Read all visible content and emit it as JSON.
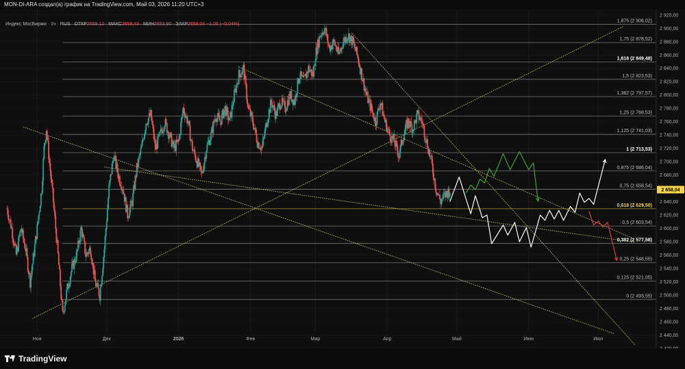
{
  "header": {
    "title": "MON-DI-ARA создал(а) график на TradingView.com, Май 03, 2026 11:20 UTC+3"
  },
  "legend": {
    "symbol": "Индекс МосБиржи · 1ч · RUS",
    "open_label": "ОТКР",
    "open": "2659,12",
    "high_label": "МАКС",
    "high": "2659,43",
    "low_label": "МИН",
    "low": "2653,90",
    "close_label": "ЗАКР",
    "close": "2658,04",
    "change": "−1,05 (−0,04%)"
  },
  "brand": {
    "name": "TradingView"
  },
  "colors": {
    "background": "#0f0f0f",
    "up": "#26a69a",
    "down": "#ef5350",
    "fib_line": "#bdbdbd",
    "trendline": "#c8c860",
    "price_badge": "#f5d64a",
    "projection_white": "#ffffff",
    "projection_green": "#3fa33f",
    "projection_red": "#e53935"
  },
  "chart_data": {
    "type": "candlestick",
    "ylim": [
      2420,
      2928
    ],
    "y_ticks": [
      "2 920,00",
      "2 900,00",
      "2 880,00",
      "2 860,00",
      "2 840,00",
      "2 820,00",
      "2 800,00",
      "2 780,00",
      "2 760,00",
      "2 740,00",
      "2 720,00",
      "2 700,00",
      "2 680,00",
      "2 660,00",
      "2 640,00",
      "2 620,00",
      "2 600,00",
      "2 580,00",
      "2 560,00",
      "2 540,00",
      "2 520,00",
      "2 500,00",
      "2 480,00",
      "2 460,00",
      "2 440,00",
      "2 420,00"
    ],
    "y_tick_values": [
      2920,
      2900,
      2880,
      2860,
      2840,
      2820,
      2800,
      2780,
      2760,
      2740,
      2720,
      2700,
      2680,
      2660,
      2640,
      2620,
      2600,
      2580,
      2560,
      2540,
      2520,
      2500,
      2480,
      2460,
      2440,
      2420
    ],
    "x_ticks": [
      {
        "label": "Ноя",
        "date": "2025-11-01"
      },
      {
        "label": "Дек",
        "date": "2025-12-01"
      },
      {
        "label": "2026",
        "date": "2026-01-01"
      },
      {
        "label": "Фев",
        "date": "2026-02-01"
      },
      {
        "label": "Мар",
        "date": "2026-03-01"
      },
      {
        "label": "Апр",
        "date": "2026-04-01"
      },
      {
        "label": "Май",
        "date": "2026-05-01"
      },
      {
        "label": "Июн",
        "date": "2026-06-01"
      },
      {
        "label": "Июл",
        "date": "2026-07-01"
      }
    ],
    "current_price": {
      "value": 2658.04,
      "label": "2 658,04"
    },
    "fib_levels": [
      {
        "ratio": "1,875",
        "value": 2906.02,
        "label": "1,875 (2 906,02)",
        "bold": false
      },
      {
        "ratio": "1,75",
        "value": 2878.52,
        "label": "1,75 (2 878,52)",
        "bold": false
      },
      {
        "ratio": "1,618",
        "value": 2849.48,
        "label": "1,618 (2 849,48)",
        "bold": true
      },
      {
        "ratio": "1,5",
        "value": 2823.53,
        "label": "1,5 (2 823,53)",
        "bold": false
      },
      {
        "ratio": "1,382",
        "value": 2797.57,
        "label": "1,382 (2 797,57)",
        "bold": false
      },
      {
        "ratio": "1,25",
        "value": 2768.53,
        "label": "1,25 (2 768,53)",
        "bold": false
      },
      {
        "ratio": "1,125",
        "value": 2741.03,
        "label": "1,125 (2 741,03)",
        "bold": false
      },
      {
        "ratio": "1",
        "value": 2713.53,
        "label": "1 (2 713,53)",
        "bold": true
      },
      {
        "ratio": "0,875",
        "value": 2686.04,
        "label": "0,875 (2 686,04)",
        "bold": false
      },
      {
        "ratio": "0,75",
        "value": 2658.54,
        "label": "0,75 (2 658,54)",
        "bold": false
      },
      {
        "ratio": "0,618",
        "value": 2629.5,
        "label": "0,618 (2 629,50)",
        "bold": true,
        "highlight": true
      },
      {
        "ratio": "0,5",
        "value": 2603.54,
        "label": "0,5 (2 603,54)",
        "bold": false
      },
      {
        "ratio": "0,382",
        "value": 2577.58,
        "label": "0,382 (2 577,58)",
        "bold": true
      },
      {
        "ratio": "0,25",
        "value": 2548.55,
        "label": "0,25 (2 548,55)",
        "bold": false
      },
      {
        "ratio": "0,125",
        "value": 2521.05,
        "label": "0,125 (2 521,05)",
        "bold": false
      },
      {
        "ratio": "0",
        "value": 2493.55,
        "label": "0 (2 493,55)",
        "bold": false
      }
    ],
    "price_path": [
      [
        "2025-10-19",
        2630
      ],
      [
        "2025-10-21",
        2600
      ],
      [
        "2025-10-23",
        2560
      ],
      [
        "2025-10-25",
        2600
      ],
      [
        "2025-10-27",
        2570
      ],
      [
        "2025-10-29",
        2520
      ],
      [
        "2025-11-01",
        2600
      ],
      [
        "2025-11-03",
        2660
      ],
      [
        "2025-11-04",
        2720
      ],
      [
        "2025-11-05",
        2750
      ],
      [
        "2025-11-06",
        2710
      ],
      [
        "2025-11-08",
        2640
      ],
      [
        "2025-11-10",
        2560
      ],
      [
        "2025-11-12",
        2470
      ],
      [
        "2025-11-14",
        2510
      ],
      [
        "2025-11-16",
        2540
      ],
      [
        "2025-11-18",
        2560
      ],
      [
        "2025-11-20",
        2600
      ],
      [
        "2025-11-22",
        2560
      ],
      [
        "2025-11-24",
        2570
      ],
      [
        "2025-11-26",
        2520
      ],
      [
        "2025-11-28",
        2500
      ],
      [
        "2025-11-30",
        2570
      ],
      [
        "2025-12-02",
        2660
      ],
      [
        "2025-12-04",
        2710
      ],
      [
        "2025-12-06",
        2680
      ],
      [
        "2025-12-08",
        2660
      ],
      [
        "2025-12-10",
        2620
      ],
      [
        "2025-12-12",
        2640
      ],
      [
        "2025-12-14",
        2690
      ],
      [
        "2025-12-16",
        2720
      ],
      [
        "2025-12-18",
        2760
      ],
      [
        "2025-12-20",
        2770
      ],
      [
        "2025-12-22",
        2720
      ],
      [
        "2025-12-24",
        2740
      ],
      [
        "2025-12-26",
        2760
      ],
      [
        "2025-12-28",
        2740
      ],
      [
        "2025-12-30",
        2720
      ],
      [
        "2026-01-01",
        2730
      ],
      [
        "2026-01-03",
        2780
      ],
      [
        "2026-01-05",
        2760
      ],
      [
        "2026-01-07",
        2720
      ],
      [
        "2026-01-09",
        2700
      ],
      [
        "2026-01-11",
        2680
      ],
      [
        "2026-01-13",
        2720
      ],
      [
        "2026-01-15",
        2740
      ],
      [
        "2026-01-17",
        2770
      ],
      [
        "2026-01-19",
        2760
      ],
      [
        "2026-01-21",
        2780
      ],
      [
        "2026-01-23",
        2760
      ],
      [
        "2026-01-25",
        2800
      ],
      [
        "2026-01-27",
        2830
      ],
      [
        "2026-01-29",
        2840
      ],
      [
        "2026-01-31",
        2780
      ],
      [
        "2026-02-02",
        2760
      ],
      [
        "2026-02-04",
        2730
      ],
      [
        "2026-02-06",
        2720
      ],
      [
        "2026-02-08",
        2760
      ],
      [
        "2026-02-10",
        2790
      ],
      [
        "2026-02-12",
        2770
      ],
      [
        "2026-02-14",
        2790
      ],
      [
        "2026-02-16",
        2780
      ],
      [
        "2026-02-18",
        2800
      ],
      [
        "2026-02-20",
        2790
      ],
      [
        "2026-02-22",
        2830
      ],
      [
        "2026-02-24",
        2820
      ],
      [
        "2026-02-26",
        2840
      ],
      [
        "2026-02-28",
        2830
      ],
      [
        "2026-03-01",
        2860
      ],
      [
        "2026-03-03",
        2890
      ],
      [
        "2026-03-05",
        2900
      ],
      [
        "2026-03-07",
        2870
      ],
      [
        "2026-03-09",
        2880
      ],
      [
        "2026-03-11",
        2860
      ],
      [
        "2026-03-13",
        2880
      ],
      [
        "2026-03-15",
        2890
      ],
      [
        "2026-03-17",
        2880
      ],
      [
        "2026-03-19",
        2860
      ],
      [
        "2026-03-21",
        2830
      ],
      [
        "2026-03-23",
        2800
      ],
      [
        "2026-03-25",
        2780
      ],
      [
        "2026-03-27",
        2760
      ],
      [
        "2026-03-29",
        2790
      ],
      [
        "2026-03-31",
        2760
      ],
      [
        "2026-04-02",
        2740
      ],
      [
        "2026-04-04",
        2730
      ],
      [
        "2026-04-06",
        2710
      ],
      [
        "2026-04-08",
        2740
      ],
      [
        "2026-04-10",
        2760
      ],
      [
        "2026-04-12",
        2750
      ],
      [
        "2026-04-14",
        2770
      ],
      [
        "2026-04-16",
        2760
      ],
      [
        "2026-04-18",
        2730
      ],
      [
        "2026-04-20",
        2700
      ],
      [
        "2026-04-22",
        2660
      ],
      [
        "2026-04-24",
        2640
      ],
      [
        "2026-04-26",
        2650
      ],
      [
        "2026-04-28",
        2658
      ]
    ],
    "trendlines": [
      {
        "from": [
          "2025-10-30",
          2465
        ],
        "to": [
          "2026-07-12",
          2903
        ]
      },
      {
        "from": [
          "2025-10-26",
          2752
        ],
        "to": [
          "2026-07-08",
          2442
        ]
      },
      {
        "from": [
          "2025-11-30",
          2692
        ],
        "to": [
          "2026-07-17",
          2579
        ]
      },
      {
        "from": [
          "2026-01-27",
          2842
        ],
        "to": [
          "2026-07-16",
          2585
        ]
      },
      {
        "from": [
          "2026-03-17",
          2892
        ],
        "to": [
          "2026-07-17",
          2425
        ]
      }
    ],
    "projections": [
      {
        "color": "white",
        "points": [
          [
            "2026-04-28",
            2640
          ],
          [
            "2026-05-02",
            2677
          ],
          [
            "2026-05-04",
            2655
          ],
          [
            "2026-05-07",
            2622
          ],
          [
            "2026-05-09",
            2649
          ],
          [
            "2026-05-12",
            2616
          ],
          [
            "2026-05-14",
            2620
          ],
          [
            "2026-05-16",
            2577
          ],
          [
            "2026-05-21",
            2605
          ],
          [
            "2026-05-23",
            2590
          ],
          [
            "2026-05-26",
            2609
          ],
          [
            "2026-05-28",
            2580
          ],
          [
            "2026-05-31",
            2601
          ],
          [
            "2026-06-02",
            2572
          ],
          [
            "2026-06-06",
            2620
          ],
          [
            "2026-06-08",
            2612
          ],
          [
            "2026-06-10",
            2627
          ],
          [
            "2026-06-12",
            2614
          ],
          [
            "2026-06-14",
            2627
          ],
          [
            "2026-06-16",
            2612
          ],
          [
            "2026-06-19",
            2633
          ],
          [
            "2026-06-21",
            2624
          ],
          [
            "2026-06-23",
            2653
          ],
          [
            "2026-06-25",
            2639
          ],
          [
            "2026-06-27",
            2645
          ],
          [
            "2026-06-29",
            2636
          ],
          [
            "2026-07-04",
            2703
          ]
        ]
      },
      {
        "color": "green",
        "points": [
          [
            "2026-05-05",
            2653
          ],
          [
            "2026-05-07",
            2665
          ],
          [
            "2026-05-09",
            2658
          ],
          [
            "2026-05-11",
            2674
          ],
          [
            "2026-05-13",
            2668
          ],
          [
            "2026-05-15",
            2690
          ],
          [
            "2026-05-17",
            2678
          ],
          [
            "2026-05-21",
            2712
          ],
          [
            "2026-05-24",
            2688
          ],
          [
            "2026-05-28",
            2715
          ],
          [
            "2026-06-01",
            2688
          ],
          [
            "2026-06-03",
            2698
          ],
          [
            "2026-06-05",
            2641
          ]
        ]
      },
      {
        "color": "red",
        "points": [
          [
            "2026-06-27",
            2626
          ],
          [
            "2026-06-29",
            2605
          ],
          [
            "2026-07-01",
            2611
          ],
          [
            "2026-07-03",
            2602
          ],
          [
            "2026-07-05",
            2609
          ],
          [
            "2026-07-09",
            2552
          ]
        ]
      }
    ]
  }
}
